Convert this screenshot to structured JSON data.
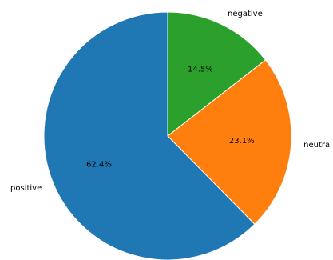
{
  "chart_data": {
    "type": "pie",
    "title": "",
    "labels": [
      "negative",
      "neutral",
      "positive"
    ],
    "values": [
      14.5,
      23.1,
      62.4
    ],
    "value_labels": [
      "14.5%",
      "23.1%",
      "62.4%"
    ],
    "colors": [
      "#2ca02c",
      "#ff7f0e",
      "#1f77b4"
    ],
    "start_angle": "top (90°)",
    "direction": "clockwise",
    "legend": "none",
    "edge_color": "#ffffff"
  }
}
